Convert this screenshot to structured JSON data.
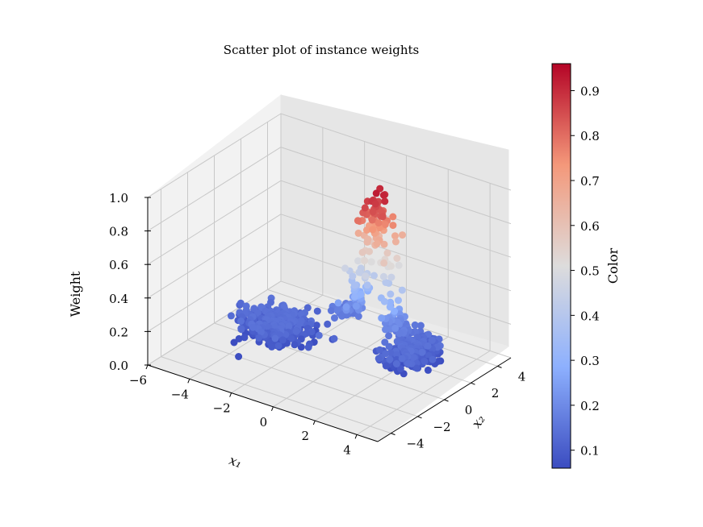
{
  "chart_data": {
    "type": "scatter",
    "projection": "3d",
    "title": "Scatter plot of instance weights",
    "xlabel": "x₁",
    "ylabel": "x₂",
    "zlabel": "Weight",
    "xlim": [
      -6,
      5
    ],
    "ylim": [
      -5,
      5
    ],
    "zlim": [
      0.0,
      1.0
    ],
    "x_ticks": [
      "−6",
      "−4",
      "−2",
      "0",
      "2",
      "4"
    ],
    "y_ticks": [
      "−4",
      "−2",
      "0",
      "2",
      "4"
    ],
    "z_ticks": [
      "0.0",
      "0.2",
      "0.4",
      "0.6",
      "0.8",
      "1.0"
    ],
    "grid": true,
    "colormap": "coolwarm",
    "colorbar": {
      "label": "Color",
      "range": [
        0.06,
        0.96
      ],
      "ticks": [
        "0.1",
        "0.2",
        "0.3",
        "0.4",
        "0.5",
        "0.6",
        "0.7",
        "0.8",
        "0.9"
      ]
    },
    "clusters": [
      {
        "center": [
          -3.0,
          0.0
        ],
        "spread": [
          1.1,
          1.1
        ],
        "weight_range": [
          0.06,
          0.15
        ],
        "approx_points": 500
      },
      {
        "center": [
          2.5,
          1.5
        ],
        "spread": [
          0.8,
          1.1
        ],
        "weight_range": [
          0.06,
          0.15
        ],
        "approx_points": 300
      }
    ],
    "ridge": {
      "description": "points between clusters with rising weight toward the peak",
      "peak_weight": 0.96,
      "weight_range": [
        0.15,
        0.96
      ]
    }
  }
}
